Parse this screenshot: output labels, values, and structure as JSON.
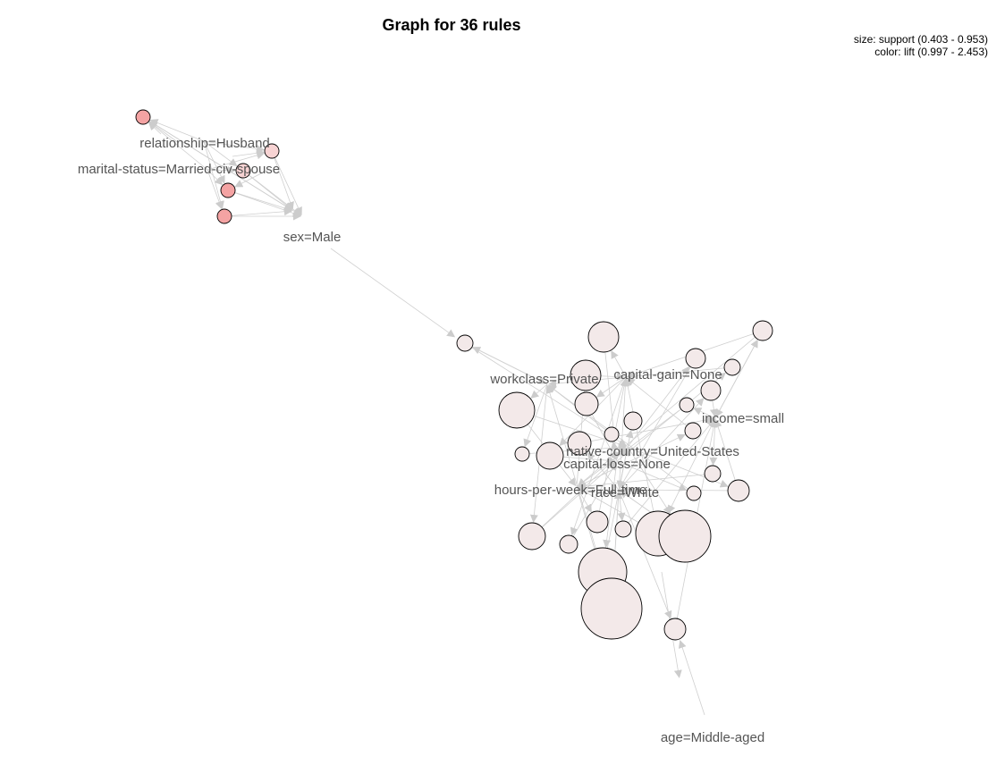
{
  "title": "Graph for 36 rules",
  "legend": {
    "size": "size: support (0.403 - 0.953)",
    "color": "color: lift (0.997 - 2.453)"
  },
  "items": [
    {
      "id": "relationship",
      "label": "relationship=Husband"
    },
    {
      "id": "marital",
      "label": "marital-status=Married-civ-spouse"
    },
    {
      "id": "sex",
      "label": "sex=Male"
    },
    {
      "id": "workclass",
      "label": "workclass=Private"
    },
    {
      "id": "capgain",
      "label": "capital-gain=None"
    },
    {
      "id": "income",
      "label": "income=small"
    },
    {
      "id": "native",
      "label": "native-country=United-States"
    },
    {
      "id": "caploss",
      "label": "capital-loss=None"
    },
    {
      "id": "hours",
      "label": "hours-per-week=Full-time"
    },
    {
      "id": "race",
      "label": "race=White"
    },
    {
      "id": "age",
      "label": "age=Middle-aged"
    }
  ],
  "colors": {
    "edge": "#cfcfcf",
    "arrow": "#cccccc",
    "rule_high_lift": "#f4a3a3",
    "rule_mid_lift": "#f7d3d3",
    "rule_low_lift": "#f3e9e9",
    "node_stroke": "#000000",
    "item_label": "#555555"
  }
}
